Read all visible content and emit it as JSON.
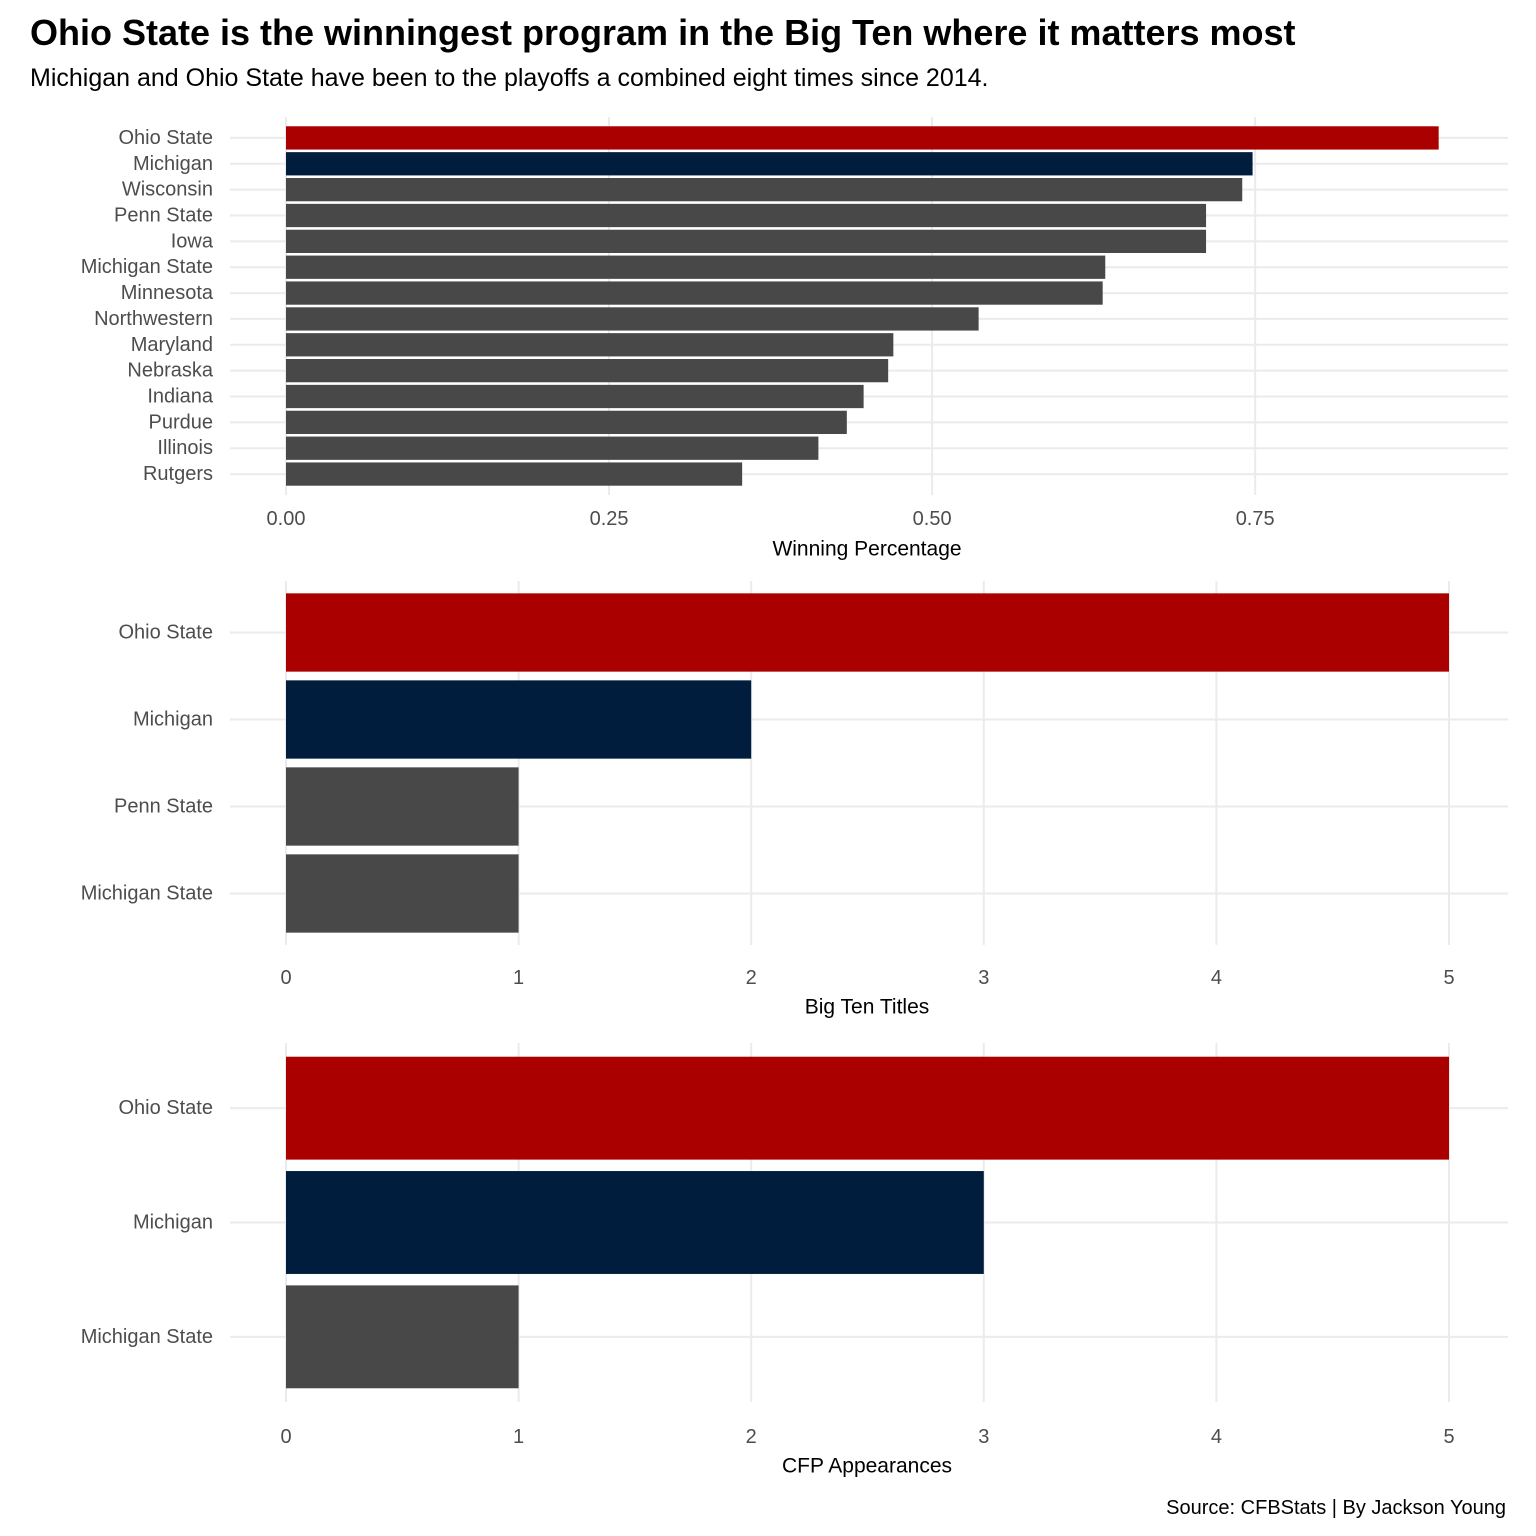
{
  "title": "Ohio State is the winningest program in the Big Ten where it matters most",
  "subtitle": "Michigan and Ohio State have been to the playoffs a combined eight times since 2014.",
  "caption": "Source: CFBStats | By Jackson Young",
  "colors": {
    "ohio_state": "#aa0000",
    "michigan": "#001d3d",
    "other": "#484848",
    "grid": "#ebebeb"
  },
  "chart_data": [
    {
      "type": "bar",
      "orientation": "horizontal",
      "xlabel": "Winning Percentage",
      "xlim": [
        0,
        0.9
      ],
      "xticks": [
        0,
        0.25,
        0.5,
        0.75
      ],
      "xtick_labels": [
        "0.00",
        "0.25",
        "0.50",
        "0.75"
      ],
      "grid": true,
      "categories": [
        "Ohio State",
        "Michigan",
        "Wisconsin",
        "Penn State",
        "Iowa",
        "Michigan State",
        "Minnesota",
        "Northwestern",
        "Maryland",
        "Nebraska",
        "Indiana",
        "Purdue",
        "Illinois",
        "Rutgers"
      ],
      "values": [
        0.892,
        0.748,
        0.74,
        0.712,
        0.712,
        0.634,
        0.632,
        0.536,
        0.47,
        0.466,
        0.447,
        0.434,
        0.412,
        0.353
      ]
    },
    {
      "type": "bar",
      "orientation": "horizontal",
      "xlabel": "Big Ten Titles",
      "xlim": [
        0,
        5
      ],
      "xticks": [
        0,
        1,
        2,
        3,
        4,
        5
      ],
      "xtick_labels": [
        "0",
        "1",
        "2",
        "3",
        "4",
        "5"
      ],
      "grid": true,
      "categories": [
        "Ohio State",
        "Michigan",
        "Penn State",
        "Michigan State"
      ],
      "values": [
        5,
        2,
        1,
        1
      ]
    },
    {
      "type": "bar",
      "orientation": "horizontal",
      "xlabel": "CFP Appearances",
      "xlim": [
        0,
        5
      ],
      "xticks": [
        0,
        1,
        2,
        3,
        4,
        5
      ],
      "xtick_labels": [
        "0",
        "1",
        "2",
        "3",
        "4",
        "5"
      ],
      "grid": true,
      "categories": [
        "Ohio State",
        "Michigan",
        "Michigan State"
      ],
      "values": [
        5,
        3,
        1
      ]
    }
  ]
}
